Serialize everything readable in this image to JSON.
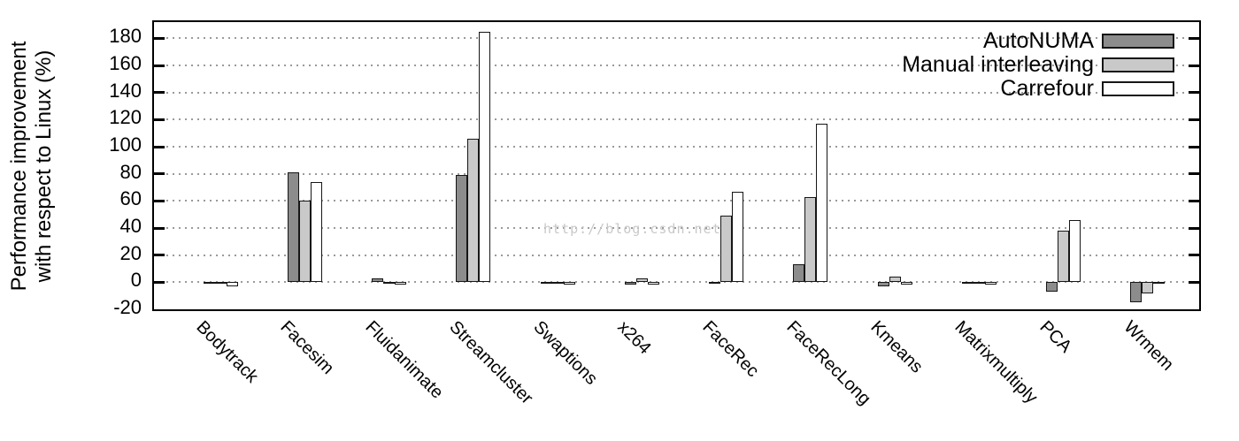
{
  "watermark_text": "http://blog.csdn.net/",
  "chart_data": {
    "type": "bar",
    "title": "",
    "ylabel": "Performance improvement with respect to Linux (%)",
    "ylabel_lines": [
      "Performance improvement",
      "with respect to Linux (%)"
    ],
    "xlabel": "",
    "ylim": [
      -20,
      192
    ],
    "yticks": [
      -20,
      0,
      20,
      40,
      60,
      80,
      100,
      120,
      140,
      160,
      180
    ],
    "grid": "dotted horizontal at each ytick from 0 to 180",
    "legend_position": "top-right inside",
    "categories": [
      "Bodytrack",
      "Facesim",
      "Fluidanimate",
      "Streamcluster",
      "Swaptions",
      "x264",
      "FaceRec",
      "FaceRecLong",
      "Kmeans",
      "Matrixmultiply",
      "PCA",
      "Wrmem"
    ],
    "series": [
      {
        "name": "AutoNUMA",
        "color": "#8c8c8c",
        "values": [
          -1,
          81,
          3,
          79,
          -1,
          -2,
          -1,
          13,
          -3,
          -1,
          -7,
          -15
        ]
      },
      {
        "name": "Manual interleaving",
        "color": "#c9c9c9",
        "values": [
          -1,
          60,
          -1,
          106,
          -1,
          3,
          49,
          63,
          4,
          -1,
          38,
          -8
        ]
      },
      {
        "name": "Carrefour",
        "color": "#ffffff",
        "values": [
          -3,
          74,
          -2,
          185,
          -2,
          -2,
          67,
          117,
          -2,
          -2,
          46,
          -1
        ]
      }
    ],
    "bar_border_color": "#161616"
  }
}
